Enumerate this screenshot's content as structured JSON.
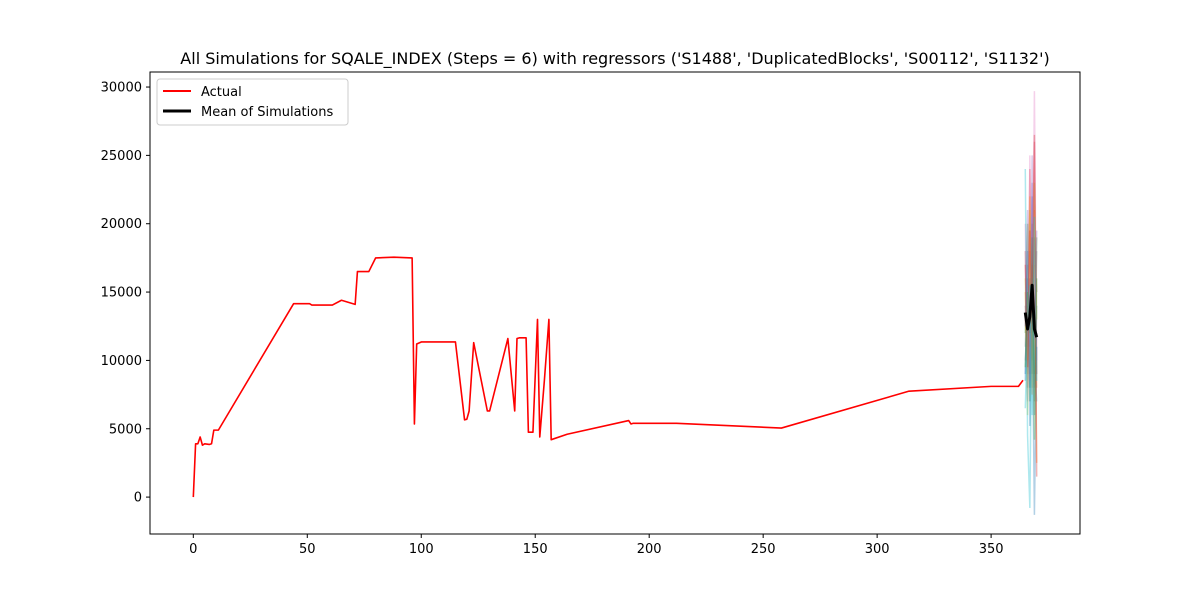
{
  "chart_data": {
    "type": "line",
    "title": "All Simulations for SQALE_INDEX (Steps = 6) with regressors ('S1488', 'DuplicatedBlocks', 'S00112', 'S1132')",
    "xlabel": "",
    "ylabel": "",
    "xlim": [
      -19,
      389
    ],
    "ylim": [
      -2700,
      31100
    ],
    "xticks": [
      0,
      50,
      100,
      150,
      200,
      250,
      300,
      350
    ],
    "yticks": [
      0,
      5000,
      10000,
      15000,
      20000,
      25000,
      30000
    ],
    "grid": false,
    "legend_position": "top-left",
    "legend": [
      "Actual",
      "Mean of Simulations"
    ],
    "actual": {
      "name": "Actual",
      "color": "#ff0000",
      "x": [
        0,
        1,
        2,
        3,
        4,
        5,
        7,
        8,
        9,
        11,
        44,
        51,
        52,
        55,
        61,
        65,
        71,
        72,
        77,
        80,
        88,
        96,
        97,
        98,
        100,
        112,
        115,
        119,
        120,
        121,
        123,
        129,
        130,
        138,
        141,
        142,
        143,
        146,
        147,
        149,
        151,
        152,
        154,
        156,
        157,
        164,
        191,
        192,
        193,
        212,
        258,
        314,
        350,
        362,
        364
      ],
      "y": [
        0,
        3900,
        3900,
        4400,
        3800,
        3900,
        3850,
        3900,
        4900,
        4900,
        14150,
        14150,
        14050,
        14050,
        14050,
        14400,
        14100,
        16500,
        16500,
        17500,
        17550,
        17500,
        5350,
        11200,
        11350,
        11350,
        11350,
        5650,
        5700,
        6300,
        11300,
        6300,
        6300,
        11600,
        6300,
        11600,
        11650,
        11650,
        4750,
        4750,
        13000,
        4400,
        8500,
        13000,
        4200,
        4600,
        5600,
        5350,
        5400,
        5400,
        5050,
        7750,
        8100,
        8100,
        8550
      ]
    },
    "mean_of_simulations": {
      "name": "Mean of Simulations",
      "color": "#000000",
      "x": [
        365,
        366,
        367,
        368,
        369,
        370
      ],
      "y": [
        13500,
        12300,
        13200,
        15500,
        12300,
        11700
      ]
    },
    "simulations": {
      "x": [
        365,
        366,
        367,
        368,
        369,
        370
      ],
      "series": [
        {
          "color": "#1f77b4",
          "y": [
            9000,
            16000,
            8000,
            22000,
            6000,
            14000
          ]
        },
        {
          "color": "#ff7f0e",
          "y": [
            15000,
            9000,
            18000,
            10000,
            21000,
            8000
          ]
        },
        {
          "color": "#2ca02c",
          "y": [
            12000,
            20000,
            7000,
            17000,
            9000,
            19000
          ]
        },
        {
          "color": "#d62728",
          "y": [
            18000,
            8000,
            24000,
            12000,
            26000,
            9000
          ]
        },
        {
          "color": "#9467bd",
          "y": [
            10000,
            14000,
            11000,
            25000,
            8000,
            12000
          ]
        },
        {
          "color": "#8c564b",
          "y": [
            14000,
            11000,
            16000,
            9000,
            19000,
            15000
          ]
        },
        {
          "color": "#e377c2",
          "y": [
            20000,
            7000,
            25000,
            11000,
            29700,
            10000
          ]
        },
        {
          "color": "#7f7f7f",
          "y": [
            11000,
            17000,
            9000,
            20000,
            7000,
            18000
          ]
        },
        {
          "color": "#bcbd22",
          "y": [
            16000,
            6000,
            21000,
            8000,
            23000,
            13000
          ]
        },
        {
          "color": "#17becf",
          "y": [
            24000,
            4500,
            -800,
            16000,
            10000,
            7000
          ]
        },
        {
          "color": "#1f77b4",
          "y": [
            8500,
            18000,
            5200,
            14000,
            -1300,
            11000
          ]
        },
        {
          "color": "#ff7f0e",
          "y": [
            13000,
            10000,
            22000,
            7500,
            17000,
            2500
          ]
        },
        {
          "color": "#2ca02c",
          "y": [
            9500,
            15000,
            12000,
            19000,
            4200,
            16000
          ]
        },
        {
          "color": "#d62728",
          "y": [
            17000,
            9500,
            19500,
            13500,
            26500,
            1500
          ]
        },
        {
          "color": "#9467bd",
          "y": [
            12500,
            21000,
            8500,
            23000,
            11500,
            19500
          ]
        },
        {
          "color": "#17becf",
          "y": [
            6500,
            12500,
            15500,
            6000,
            20500,
            8500
          ]
        }
      ]
    }
  }
}
